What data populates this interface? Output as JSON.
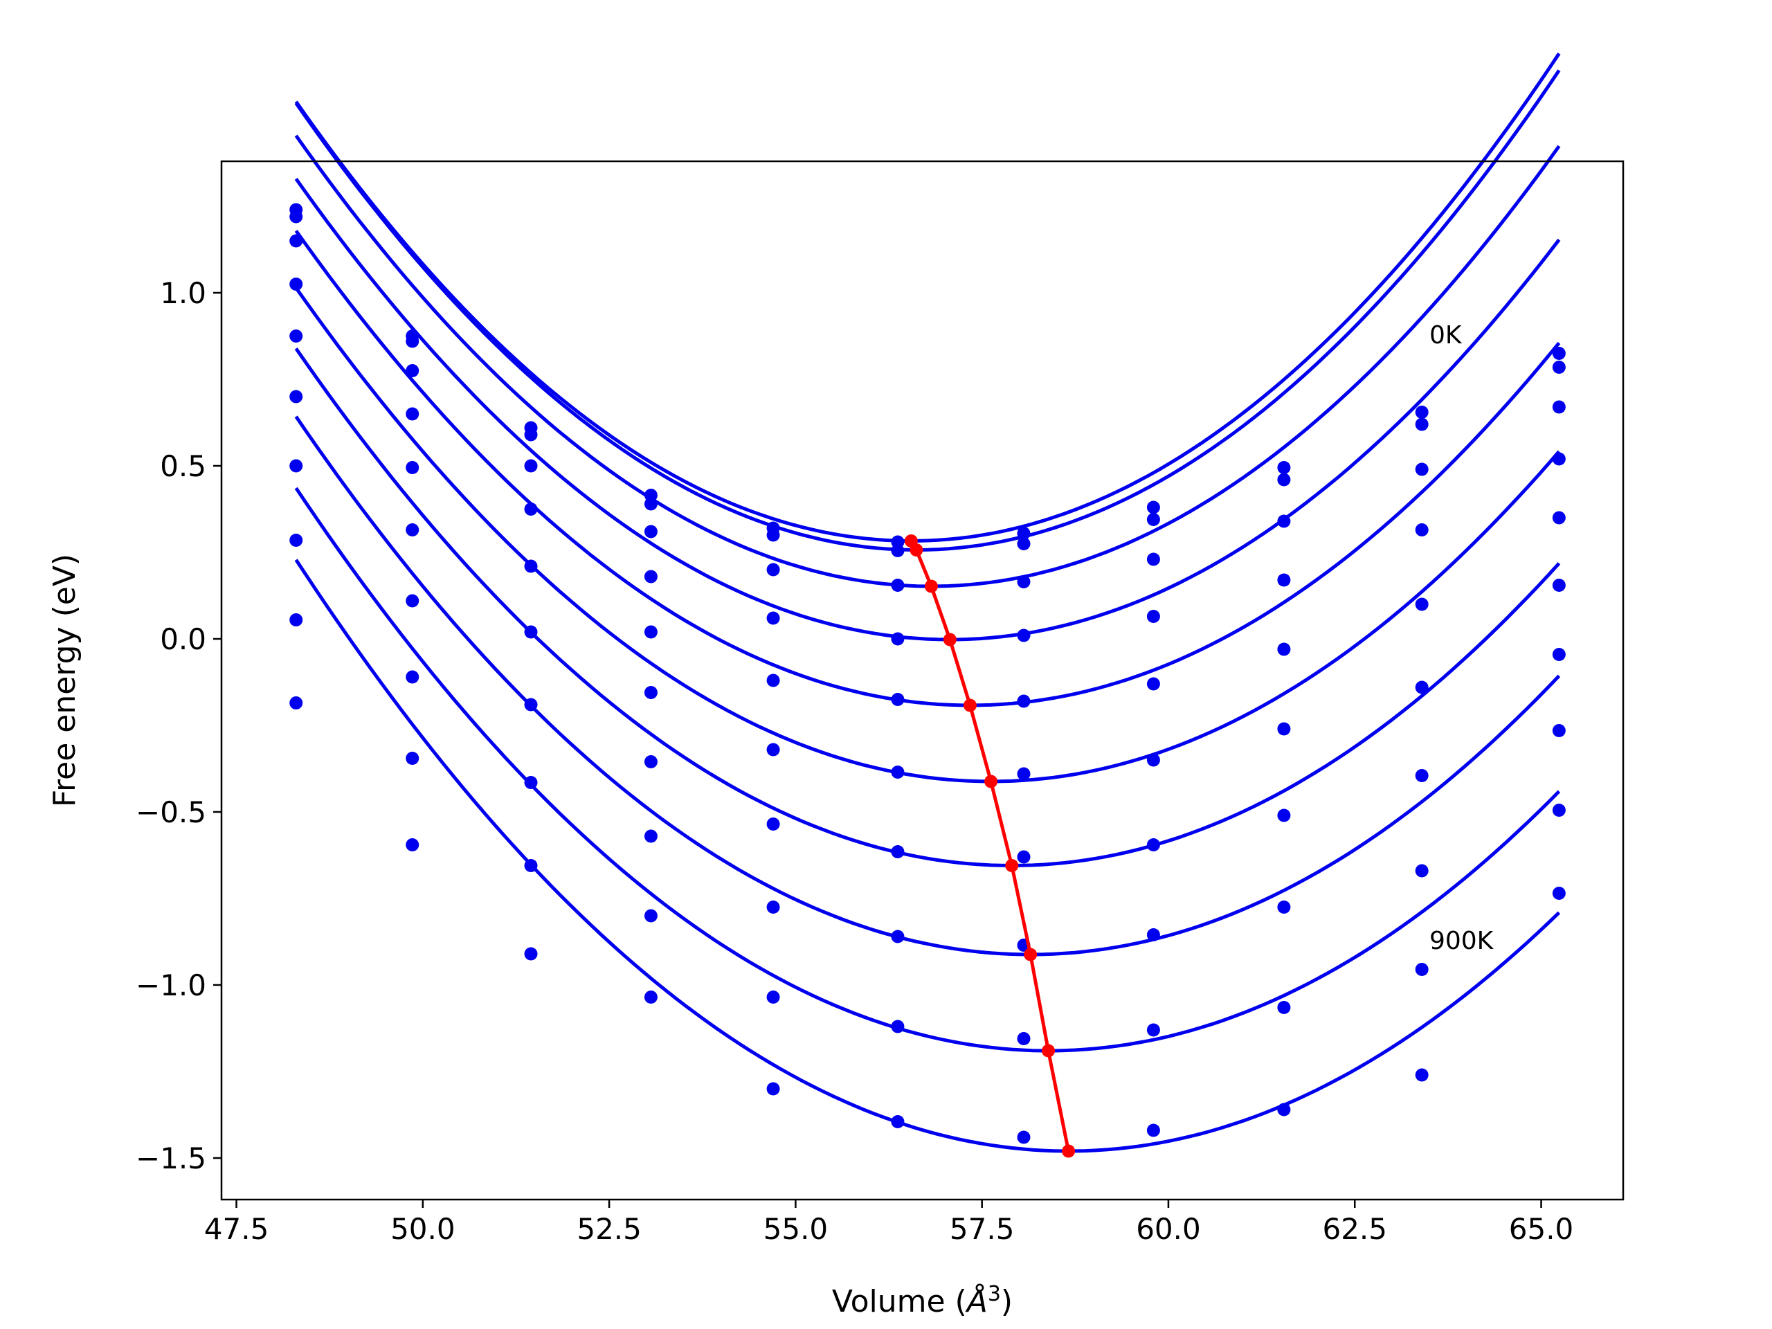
{
  "chart_data": {
    "type": "line",
    "xlabel_main": "Volume (",
    "xlabel_unit": "Å",
    "xlabel_exp": "3",
    "xlabel_close": ")",
    "ylabel": "Free energy (eV)",
    "xlim": [
      47.3,
      66.1
    ],
    "ylim": [
      -1.62,
      1.38
    ],
    "xticks": [
      47.5,
      50.0,
      52.5,
      55.0,
      57.5,
      60.0,
      62.5,
      65.0
    ],
    "xtick_labels": [
      "47.5",
      "50.0",
      "52.5",
      "55.0",
      "57.5",
      "60.0",
      "62.5",
      "65.0"
    ],
    "yticks": [
      -1.5,
      -1.0,
      -0.5,
      0.0,
      0.5,
      1.0
    ],
    "ytick_labels": [
      "−1.5",
      "−1.0",
      "−0.5",
      "0.0",
      "0.5",
      "1.0"
    ],
    "annotations": [
      {
        "text": "0K",
        "x": 63.5,
        "y": 0.88
      },
      {
        "text": "900K",
        "x": 63.5,
        "y": -0.87
      }
    ],
    "colors": {
      "curves": "#0000ee",
      "equilibrium": "#ff0000",
      "frame": "#000000"
    },
    "x": [
      48.3,
      49.86,
      51.45,
      53.06,
      54.7,
      56.37,
      58.06,
      59.8,
      61.55,
      63.4,
      65.24
    ],
    "series": [
      {
        "points": [
          1.24,
          0.875,
          0.61,
          0.415,
          0.32,
          0.28,
          0.305,
          0.38,
          0.495,
          0.655,
          0.825
        ],
        "fit": {
          "a": 0.01865,
          "v0": 56.55,
          "e0": 0.283
        }
      },
      {
        "points": [
          1.22,
          0.86,
          0.59,
          0.39,
          0.3,
          0.255,
          0.275,
          0.345,
          0.46,
          0.62,
          0.785
        ],
        "fit": {
          "a": 0.01865,
          "v0": 56.62,
          "e0": 0.257
        }
      },
      {
        "points": [
          1.15,
          0.775,
          0.5,
          0.31,
          0.2,
          0.155,
          0.165,
          0.23,
          0.34,
          0.49,
          0.67
        ],
        "fit": {
          "a": 0.01794,
          "v0": 56.82,
          "e0": 0.152
        }
      },
      {
        "points": [
          1.025,
          0.65,
          0.375,
          0.18,
          0.06,
          0.0,
          0.01,
          0.065,
          0.17,
          0.315,
          0.52
        ],
        "fit": {
          "a": 0.01731,
          "v0": 57.07,
          "e0": -0.002
        }
      },
      {
        "points": [
          0.875,
          0.495,
          0.21,
          0.02,
          -0.12,
          -0.175,
          -0.18,
          -0.13,
          -0.03,
          0.1,
          0.35
        ],
        "fit": {
          "a": 0.01678,
          "v0": 57.34,
          "e0": -0.192
        }
      },
      {
        "points": [
          0.7,
          0.315,
          0.02,
          -0.155,
          -0.32,
          -0.385,
          -0.39,
          -0.35,
          -0.26,
          -0.14,
          0.155
        ],
        "fit": {
          "a": 0.01642,
          "v0": 57.62,
          "e0": -0.412
        }
      },
      {
        "points": [
          0.5,
          0.11,
          -0.19,
          -0.355,
          -0.535,
          -0.615,
          -0.63,
          -0.595,
          -0.51,
          -0.395,
          -0.045
        ],
        "fit": {
          "a": 0.01621,
          "v0": 57.9,
          "e0": -0.655
        }
      },
      {
        "points": [
          0.285,
          -0.11,
          -0.415,
          -0.57,
          -0.775,
          -0.86,
          -0.885,
          -0.855,
          -0.775,
          -0.67,
          -0.265
        ],
        "fit": {
          "a": 0.01602,
          "v0": 58.15,
          "e0": -0.912
        }
      },
      {
        "points": [
          0.055,
          -0.345,
          -0.655,
          -0.8,
          -1.035,
          -1.12,
          -1.155,
          -1.13,
          -1.065,
          -0.955,
          -0.495
        ],
        "fit": {
          "a": 0.01597,
          "v0": 58.39,
          "e0": -1.19
        }
      },
      {
        "points": [
          -0.185,
          -0.595,
          -0.91,
          -1.035,
          -1.3,
          -1.395,
          -1.44,
          -1.42,
          -1.36,
          -1.26,
          -0.735
        ],
        "fit": {
          "a": 0.01592,
          "v0": 58.66,
          "e0": -1.48
        }
      }
    ],
    "equilibrium": {
      "x": [
        56.55,
        56.62,
        56.82,
        57.07,
        57.34,
        57.62,
        57.9,
        58.15,
        58.39,
        58.66
      ],
      "y": [
        0.283,
        0.257,
        0.152,
        -0.002,
        -0.192,
        -0.412,
        -0.655,
        -0.912,
        -1.19,
        -1.48
      ]
    }
  }
}
